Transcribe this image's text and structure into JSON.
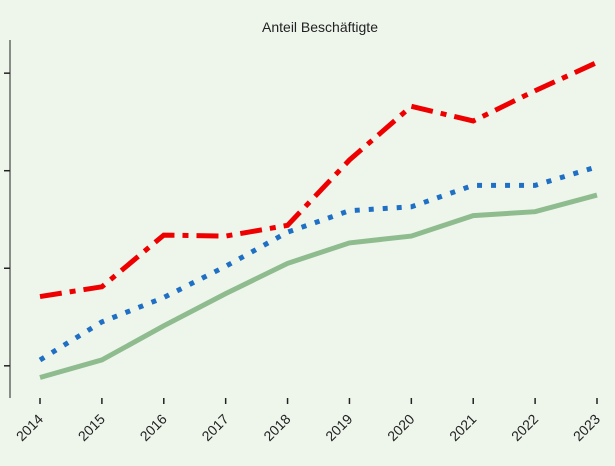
{
  "chart_data": {
    "type": "line",
    "title": "Anteil Beschäftigte",
    "categories": [
      "2014",
      "2015",
      "2016",
      "2017",
      "2018",
      "2019",
      "2020",
      "2021",
      "2022",
      "2023"
    ],
    "series": [
      {
        "color": "#ee0000",
        "dash": "dashdot",
        "values": [
          17.1,
          18.1,
          23.4,
          23.3,
          24.4,
          31.1,
          36.6,
          35.1,
          38.2,
          41.1
        ]
      },
      {
        "color": "#1f6fc4",
        "dash": "dotted",
        "values": [
          10.6,
          14.5,
          17.0,
          20.2,
          23.7,
          25.9,
          26.3,
          28.5,
          28.5,
          30.4
        ]
      },
      {
        "color": "#8fbc8f",
        "dash": "solid",
        "values": [
          8.8,
          10.6,
          14.1,
          17.4,
          20.5,
          22.6,
          23.3,
          25.4,
          25.8,
          27.5
        ]
      }
    ],
    "ylim": [
      6.7,
      43.4
    ],
    "yticks": [
      10,
      20,
      30,
      40
    ]
  }
}
